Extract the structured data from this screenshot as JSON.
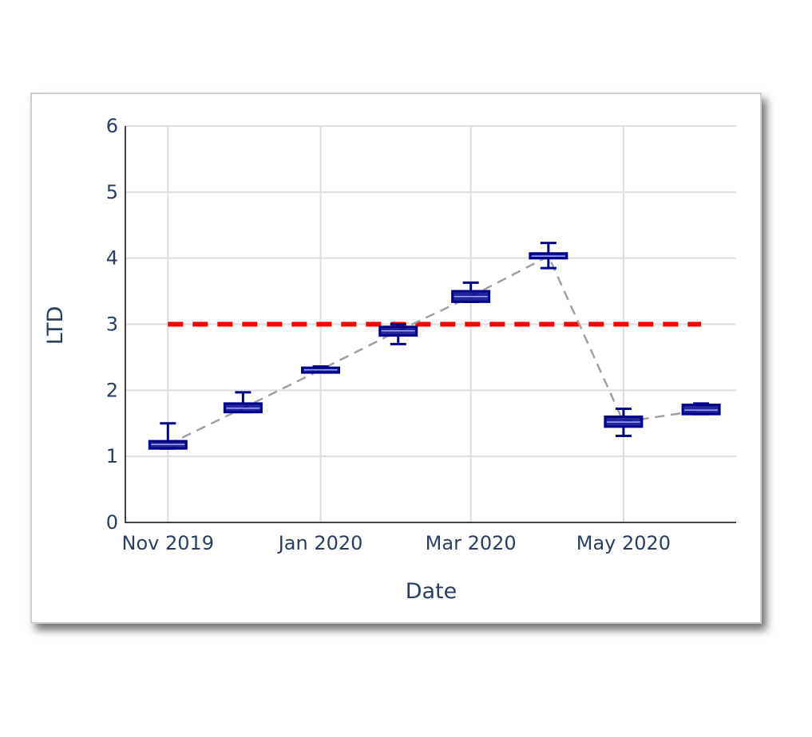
{
  "chart_data": {
    "type": "box",
    "xlabel": "Date",
    "ylabel": "LTD",
    "ylim": [
      0,
      6
    ],
    "yticks": [
      "0",
      "1",
      "2",
      "3",
      "4",
      "5",
      "6"
    ],
    "xlim": [
      "2019-10-15",
      "2020-06-15"
    ],
    "xticks": [
      {
        "date": "2019-11-01",
        "label": "Nov 2019"
      },
      {
        "date": "2020-01-01",
        "label": "Jan 2020"
      },
      {
        "date": "2020-03-01",
        "label": "Mar 2020"
      },
      {
        "date": "2020-05-01",
        "label": "May 2020"
      }
    ],
    "grid": true,
    "threshold": {
      "value": 3,
      "from": "2019-11-01",
      "to": "2020-06-01",
      "color": "#ff0000",
      "style": "dashed"
    },
    "box_color": "#00008b",
    "trend_line_color": "#a0a0a0",
    "boxes": [
      {
        "x": "2019-11-01",
        "min": 1.12,
        "q1": 1.12,
        "median": 1.18,
        "q3": 1.23,
        "max": 1.5
      },
      {
        "x": "2019-12-01",
        "min": 1.67,
        "q1": 1.67,
        "median": 1.73,
        "q3": 1.8,
        "max": 1.97
      },
      {
        "x": "2020-01-01",
        "min": 2.27,
        "q1": 2.27,
        "median": 2.31,
        "q3": 2.34,
        "max": 2.36
      },
      {
        "x": "2020-02-01",
        "min": 2.7,
        "q1": 2.83,
        "median": 2.9,
        "q3": 2.96,
        "max": 3.0
      },
      {
        "x": "2020-03-01",
        "min": 3.34,
        "q1": 3.34,
        "median": 3.42,
        "q3": 3.5,
        "max": 3.63
      },
      {
        "x": "2020-04-01",
        "min": 3.85,
        "q1": 4.0,
        "median": 4.03,
        "q3": 4.07,
        "max": 4.23
      },
      {
        "x": "2020-05-01",
        "min": 1.31,
        "q1": 1.45,
        "median": 1.52,
        "q3": 1.6,
        "max": 1.72
      },
      {
        "x": "2020-06-01",
        "min": 1.64,
        "q1": 1.64,
        "median": 1.7,
        "q3": 1.78,
        "max": 1.8
      }
    ]
  }
}
